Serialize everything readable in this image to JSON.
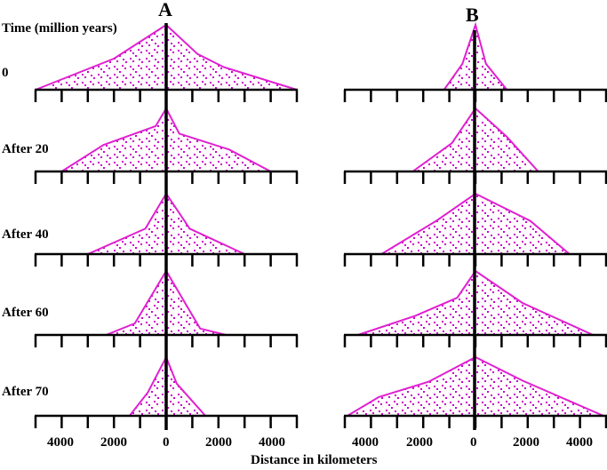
{
  "column_a_label": "A",
  "column_b_label": "B",
  "y_label": "Time (million years)",
  "x_label": "Distance in kilometers",
  "rows": [
    {
      "label": "0"
    },
    {
      "label": "After 20"
    },
    {
      "label": "After 40"
    },
    {
      "label": "After 60"
    },
    {
      "label": "After 70"
    }
  ],
  "x_ticks": [
    "4000",
    "2000",
    "0",
    "2000",
    "4000"
  ],
  "x_tick_values": [
    -4000,
    -2000,
    0,
    2000,
    4000
  ],
  "x_range": [
    -5000,
    5000
  ],
  "tick_interval": 1000,
  "colors": {
    "fill_pattern": "#cc00cc",
    "outline": "#e020d0",
    "axis": "#000000"
  },
  "profiles_a": [
    [
      [
        -5000,
        0
      ],
      [
        -2000,
        0.48
      ],
      [
        0,
        1.0
      ],
      [
        1200,
        0.55
      ],
      [
        2200,
        0.35
      ],
      [
        5000,
        0
      ]
    ],
    [
      [
        -4000,
        0
      ],
      [
        -2400,
        0.42
      ],
      [
        -400,
        0.72
      ],
      [
        0,
        1.0
      ],
      [
        500,
        0.6
      ],
      [
        2400,
        0.35
      ],
      [
        4000,
        0
      ]
    ],
    [
      [
        -3000,
        0
      ],
      [
        -800,
        0.42
      ],
      [
        0,
        1.0
      ],
      [
        900,
        0.42
      ],
      [
        3000,
        0
      ]
    ],
    [
      [
        -2300,
        0
      ],
      [
        -1200,
        0.18
      ],
      [
        0,
        1.0
      ],
      [
        1300,
        0.1
      ],
      [
        2300,
        0
      ]
    ],
    [
      [
        -1400,
        0
      ],
      [
        -700,
        0.4
      ],
      [
        0,
        1.0
      ],
      [
        400,
        0.55
      ],
      [
        1500,
        0
      ]
    ]
  ],
  "profiles_b": [
    [
      [
        -1200,
        0
      ],
      [
        -500,
        0.4
      ],
      [
        0,
        1.0
      ],
      [
        400,
        0.4
      ],
      [
        1200,
        0
      ]
    ],
    [
      [
        -2400,
        0
      ],
      [
        -900,
        0.45
      ],
      [
        0,
        1.0
      ],
      [
        1200,
        0.55
      ],
      [
        2400,
        0
      ]
    ],
    [
      [
        -3600,
        0
      ],
      [
        -1500,
        0.55
      ],
      [
        0,
        1.0
      ],
      [
        2100,
        0.55
      ],
      [
        3600,
        0
      ]
    ],
    [
      [
        -4500,
        0
      ],
      [
        -2300,
        0.3
      ],
      [
        -700,
        0.58
      ],
      [
        0,
        1.0
      ],
      [
        1800,
        0.5
      ],
      [
        4500,
        0
      ]
    ],
    [
      [
        -4900,
        0
      ],
      [
        -3700,
        0.32
      ],
      [
        -1800,
        0.58
      ],
      [
        0,
        1.0
      ],
      [
        1800,
        0.6
      ],
      [
        4900,
        0
      ]
    ]
  ]
}
